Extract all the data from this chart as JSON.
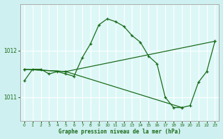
{
  "bg_color": "#cff0f0",
  "plot_bg_color": "#ddf7f7",
  "line_color": "#1a6b1a",
  "grid_color": "#ffffff",
  "xlabel": "Graphe pression niveau de la mer (hPa)",
  "ylim": [
    1010.5,
    1013.0
  ],
  "xlim": [
    -0.5,
    23.5
  ],
  "yticks": [
    1011,
    1012
  ],
  "xticks": [
    0,
    1,
    2,
    3,
    4,
    5,
    6,
    7,
    8,
    9,
    10,
    11,
    12,
    13,
    14,
    15,
    16,
    17,
    18,
    19,
    20,
    21,
    22,
    23
  ],
  "series1_x": [
    0,
    1,
    2,
    3,
    4,
    5,
    6,
    7,
    8,
    9,
    10,
    11,
    12,
    13,
    14,
    15,
    16,
    17,
    18,
    19,
    20,
    21,
    22,
    23
  ],
  "series1_y": [
    1011.35,
    1011.6,
    1011.6,
    1011.5,
    1011.55,
    1011.5,
    1011.45,
    1011.85,
    1012.15,
    1012.55,
    1012.68,
    1012.62,
    1012.52,
    1012.32,
    1012.18,
    1011.88,
    1011.72,
    1011.0,
    1010.78,
    1010.78,
    1010.82,
    1011.32,
    1011.55,
    1012.2
  ],
  "series2_x": [
    0,
    5,
    23
  ],
  "series2_y": [
    1011.6,
    1011.55,
    1012.2
  ],
  "series3_x": [
    0,
    5,
    19
  ],
  "series3_y": [
    1011.6,
    1011.55,
    1010.78
  ]
}
